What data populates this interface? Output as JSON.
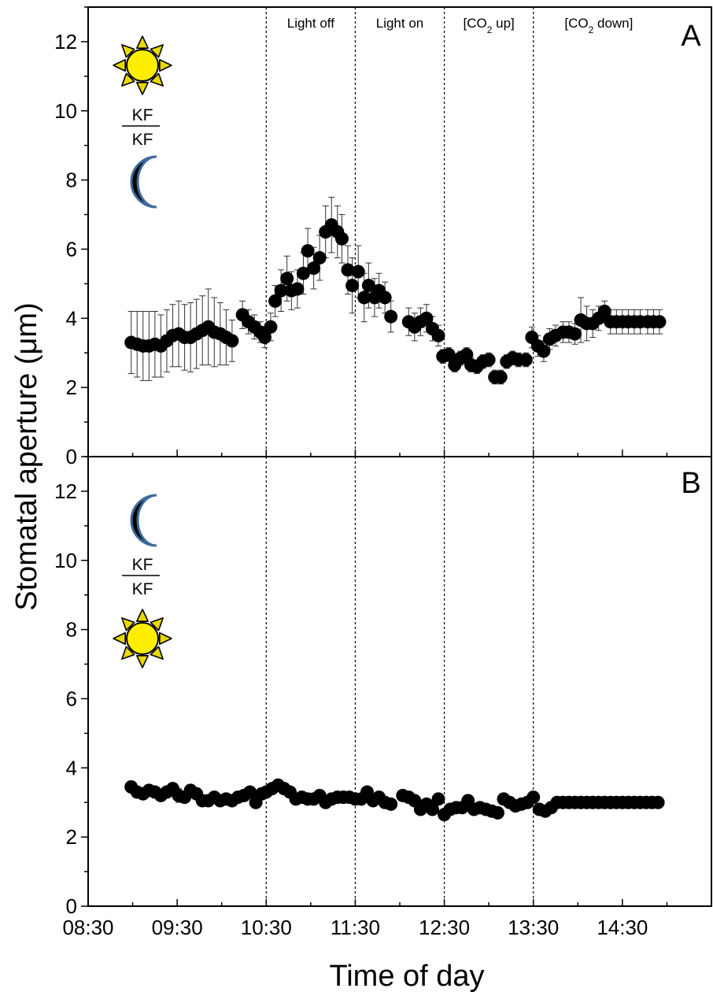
{
  "chart_data": [
    {
      "panel": "A",
      "type": "scatter",
      "xlabel": "Time of day",
      "ylabel": "Stomatal aperture (μm)",
      "xlim": [
        "08:30",
        "15:30"
      ],
      "ylim": [
        0,
        13
      ],
      "x_ticks": [
        "08:30",
        "09:30",
        "10:30",
        "11:30",
        "12:30",
        "13:30",
        "14:30"
      ],
      "y_ticks": [
        0,
        2,
        4,
        6,
        8,
        10,
        12
      ],
      "phase_boundaries": [
        "10:30",
        "11:30",
        "12:30",
        "13:30"
      ],
      "phase_labels": [
        "Light off",
        "Light on",
        "[CO₂ up]",
        "[CO₂ down]"
      ],
      "icon_labels": {
        "numerator": "KF",
        "denominator": "KF"
      },
      "error_bars": true,
      "series": [
        {
          "x": [
            "08:59",
            "09:03",
            "09:07",
            "09:11",
            "09:15",
            "09:19",
            "09:23",
            "09:27",
            "09:31",
            "09:35",
            "09:39",
            "09:43",
            "09:47",
            "09:51",
            "09:55",
            "09:59",
            "10:03",
            "10:07",
            "10:14",
            "10:18",
            "10:22",
            "10:26",
            "10:29",
            "10:33",
            "10:36",
            "10:40",
            "10:44",
            "10:47",
            "10:51",
            "10:55",
            "10:58",
            "11:02",
            "11:06",
            "11:10",
            "11:14",
            "11:18",
            "11:21",
            "11:25",
            "11:28",
            "11:32",
            "11:36",
            "11:39",
            "11:43",
            "11:46",
            "11:50",
            "11:54",
            "12:06",
            "12:10",
            "12:14",
            "12:18",
            "12:22",
            "12:26",
            "12:29",
            "12:33",
            "12:37",
            "12:41",
            "12:45",
            "12:48",
            "12:52",
            "12:56",
            "13:00",
            "13:04",
            "13:08",
            "13:12",
            "13:16",
            "13:20",
            "13:25",
            "13:29",
            "13:33",
            "13:37",
            "13:41",
            "13:45",
            "13:50",
            "13:54",
            "13:58",
            "14:02",
            "14:06",
            "14:10",
            "14:14",
            "14:18",
            "14:22",
            "14:26",
            "14:30",
            "14:34",
            "14:38",
            "14:42",
            "14:47",
            "14:51",
            "14:55"
          ],
          "y": [
            3.3,
            3.25,
            3.2,
            3.2,
            3.25,
            3.2,
            3.35,
            3.5,
            3.55,
            3.45,
            3.45,
            3.55,
            3.65,
            3.75,
            3.6,
            3.55,
            3.45,
            3.35,
            4.1,
            3.9,
            3.75,
            3.6,
            3.45,
            3.75,
            4.5,
            4.8,
            5.15,
            4.8,
            4.85,
            5.3,
            5.95,
            5.45,
            5.75,
            6.5,
            6.7,
            6.5,
            6.3,
            5.4,
            4.95,
            5.35,
            4.6,
            4.95,
            4.6,
            4.8,
            4.6,
            4.05,
            3.9,
            3.75,
            3.9,
            4.0,
            3.7,
            3.5,
            2.9,
            2.95,
            2.65,
            2.85,
            2.95,
            2.65,
            2.6,
            2.75,
            2.8,
            2.3,
            2.3,
            2.75,
            2.85,
            2.8,
            2.8,
            3.45,
            3.2,
            3.05,
            3.4,
            3.5,
            3.6,
            3.6,
            3.55,
            3.95,
            3.85,
            3.85,
            4.0,
            4.2,
            3.9,
            3.9,
            3.9,
            3.9,
            3.9,
            3.9,
            3.9,
            3.9,
            3.9
          ],
          "err": [
            0.9,
            0.95,
            1.0,
            1.0,
            0.95,
            0.9,
            0.9,
            0.9,
            0.95,
            0.95,
            1.0,
            1.0,
            1.0,
            1.1,
            1.0,
            0.9,
            0.8,
            0.6,
            0.4,
            0.35,
            0.35,
            0.3,
            0.3,
            0.4,
            0.45,
            0.6,
            0.65,
            0.55,
            0.55,
            0.6,
            0.65,
            0.6,
            0.65,
            0.75,
            0.8,
            0.75,
            0.7,
            0.7,
            0.8,
            0.75,
            0.7,
            0.65,
            0.55,
            0.5,
            0.45,
            0.45,
            0.4,
            0.4,
            0.4,
            0.4,
            0.35,
            0.3,
            0.2,
            0.2,
            0.2,
            0.2,
            0.2,
            0.2,
            0.2,
            0.2,
            0.2,
            0.2,
            0.2,
            0.2,
            0.2,
            0.2,
            0.2,
            0.3,
            0.3,
            0.3,
            0.3,
            0.3,
            0.3,
            0.3,
            0.3,
            0.65,
            0.5,
            0.4,
            0.35,
            0.3,
            0.35,
            0.35,
            0.35,
            0.35,
            0.35,
            0.35,
            0.35,
            0.35,
            0.35
          ]
        }
      ]
    },
    {
      "panel": "B",
      "type": "scatter",
      "xlabel": "Time of day",
      "ylabel": "Stomatal aperture (μm)",
      "xlim": [
        "08:30",
        "15:30"
      ],
      "ylim": [
        0,
        13
      ],
      "x_ticks": [
        "08:30",
        "09:30",
        "10:30",
        "11:30",
        "12:30",
        "13:30",
        "14:30"
      ],
      "y_ticks": [
        0,
        2,
        4,
        6,
        8,
        10,
        12
      ],
      "phase_boundaries": [
        "10:30",
        "11:30",
        "12:30",
        "13:30"
      ],
      "icon_labels": {
        "numerator": "KF",
        "denominator": "KF"
      },
      "error_bars": true,
      "series": [
        {
          "x": [
            "08:59",
            "09:03",
            "09:07",
            "09:11",
            "09:15",
            "09:19",
            "09:23",
            "09:27",
            "09:31",
            "09:35",
            "09:39",
            "09:43",
            "09:47",
            "09:51",
            "09:55",
            "09:59",
            "10:03",
            "10:07",
            "10:11",
            "10:15",
            "10:19",
            "10:23",
            "10:27",
            "10:30",
            "10:34",
            "10:38",
            "10:42",
            "10:46",
            "10:50",
            "10:54",
            "10:58",
            "11:02",
            "11:06",
            "11:10",
            "11:14",
            "11:18",
            "11:22",
            "11:26",
            "11:30",
            "11:34",
            "11:38",
            "11:42",
            "11:46",
            "11:50",
            "11:54",
            "12:02",
            "12:06",
            "12:10",
            "12:14",
            "12:18",
            "12:22",
            "12:26",
            "12:30",
            "12:34",
            "12:38",
            "12:42",
            "12:46",
            "12:50",
            "12:54",
            "12:58",
            "13:02",
            "13:06",
            "13:10",
            "13:14",
            "13:18",
            "13:22",
            "13:26",
            "13:30",
            "13:34",
            "13:38",
            "13:42",
            "13:46",
            "13:50",
            "13:54",
            "13:58",
            "14:02",
            "14:06",
            "14:10",
            "14:14",
            "14:18",
            "14:22",
            "14:26",
            "14:30",
            "14:34",
            "14:38",
            "14:42",
            "14:46",
            "14:50",
            "14:54"
          ],
          "y": [
            3.45,
            3.3,
            3.25,
            3.35,
            3.3,
            3.2,
            3.3,
            3.4,
            3.2,
            3.15,
            3.35,
            3.25,
            3.05,
            3.05,
            3.15,
            3.05,
            3.1,
            3.05,
            3.15,
            3.2,
            3.3,
            3.0,
            3.25,
            3.3,
            3.4,
            3.5,
            3.4,
            3.3,
            3.1,
            3.15,
            3.1,
            3.1,
            3.2,
            3.0,
            3.1,
            3.15,
            3.15,
            3.15,
            3.1,
            3.1,
            3.3,
            3.05,
            3.15,
            3.0,
            2.95,
            3.2,
            3.15,
            3.05,
            2.8,
            2.95,
            2.8,
            3.1,
            2.65,
            2.8,
            2.85,
            2.85,
            3.05,
            2.8,
            2.85,
            2.8,
            2.75,
            2.7,
            3.1,
            3.0,
            2.9,
            2.95,
            3.0,
            3.15,
            2.8,
            2.75,
            2.85,
            3.0,
            3.0,
            3.0,
            3.0,
            3.0,
            3.0,
            3.0,
            3.0,
            3.0,
            3.0,
            3.0,
            3.0,
            3.0,
            3.0,
            3.0,
            3.0,
            3.0,
            3.0
          ],
          "err": [
            0.15,
            0.15,
            0.15,
            0.15,
            0.15,
            0.15,
            0.15,
            0.15,
            0.2,
            0.15,
            0.15,
            0.15,
            0.15,
            0.15,
            0.15,
            0.15,
            0.15,
            0.15,
            0.15,
            0.15,
            0.15,
            0.15,
            0.15,
            0.15,
            0.15,
            0.15,
            0.15,
            0.15,
            0.15,
            0.15,
            0.15,
            0.15,
            0.15,
            0.15,
            0.15,
            0.15,
            0.15,
            0.15,
            0.15,
            0.15,
            0.15,
            0.15,
            0.15,
            0.15,
            0.15,
            0.15,
            0.15,
            0.15,
            0.15,
            0.15,
            0.15,
            0.15,
            0.15,
            0.15,
            0.15,
            0.15,
            0.15,
            0.15,
            0.15,
            0.15,
            0.15,
            0.15,
            0.15,
            0.15,
            0.15,
            0.15,
            0.15,
            0.15,
            0.15,
            0.15,
            0.15,
            0.15,
            0.15,
            0.15,
            0.15,
            0.15,
            0.15,
            0.15,
            0.15,
            0.15,
            0.15,
            0.15,
            0.15,
            0.15,
            0.15,
            0.15,
            0.15,
            0.15,
            0.15
          ]
        }
      ]
    }
  ],
  "colors": {
    "marker": "#000000",
    "sun_fill": "#FFEE00",
    "sun_rays": "#E8D800",
    "moon_edge": "#3D6A9A"
  },
  "icons": {
    "day": "sun-icon",
    "night": "moon-icon"
  }
}
